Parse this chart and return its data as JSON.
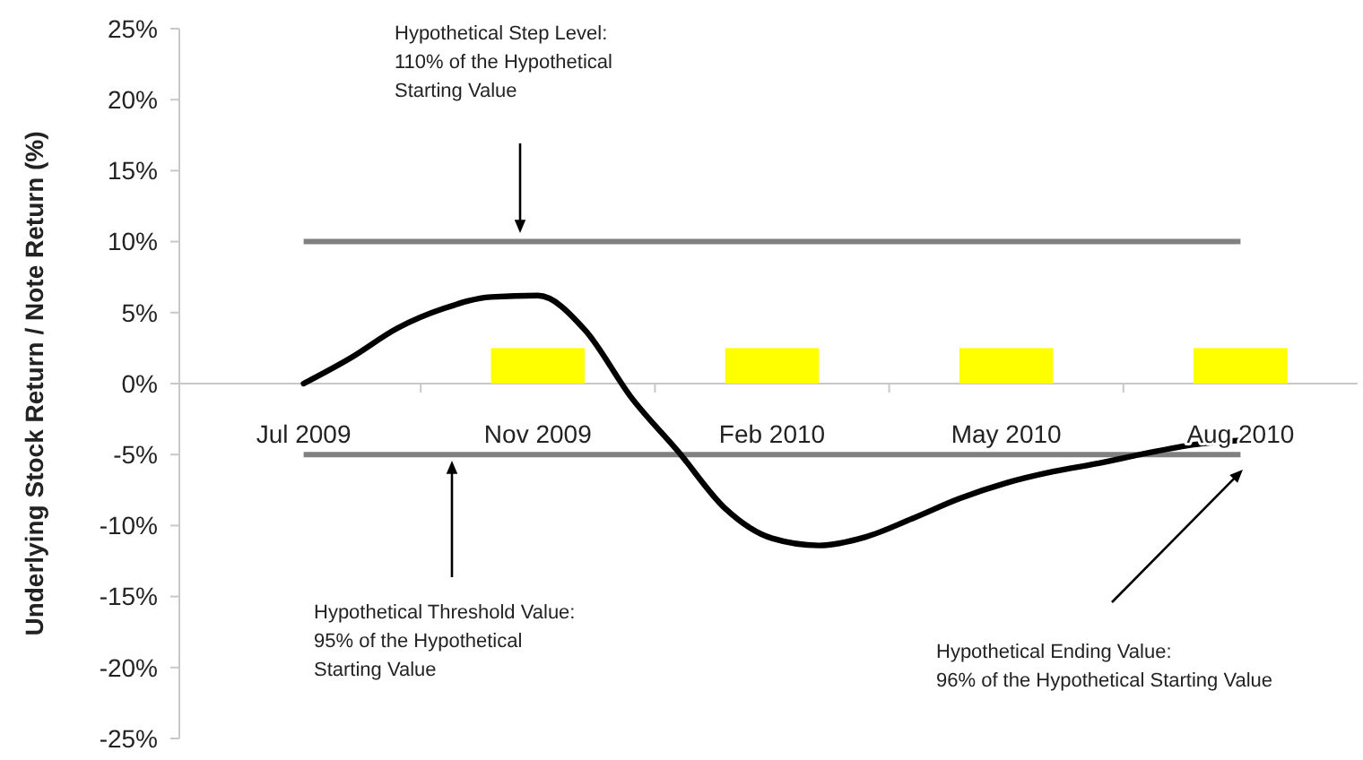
{
  "chart_data": {
    "type": "bar",
    "ylabel": "Underlying Stock Return / Note Return (%)",
    "categories": [
      "Jul 2009",
      null,
      null,
      null,
      null,
      "Nov 2009",
      null,
      null,
      null,
      null,
      "Feb 2010",
      null,
      null,
      null,
      null,
      "May 2010",
      null,
      null,
      null,
      null,
      "Aug 2010"
    ],
    "ylim": [
      -25,
      25
    ],
    "yticks": [
      {
        "value": 25,
        "label": "25%"
      },
      {
        "value": 20,
        "label": "20%"
      },
      {
        "value": 15,
        "label": "15%"
      },
      {
        "value": 10,
        "label": "10%"
      },
      {
        "value": 5,
        "label": "5%"
      },
      {
        "value": 0,
        "label": "0%"
      },
      {
        "value": -5,
        "label": "-5%"
      },
      {
        "value": -10,
        "label": "-10%"
      },
      {
        "value": -15,
        "label": "-15%"
      },
      {
        "value": -20,
        "label": "-20%"
      },
      {
        "value": -25,
        "label": "-25%"
      }
    ],
    "series": [
      {
        "color": "#ffff00",
        "values": [
          null,
          null,
          null,
          null,
          null,
          2.5,
          null,
          null,
          null,
          null,
          2.5,
          null,
          null,
          null,
          null,
          2.5,
          null,
          null,
          null,
          null,
          2.5
        ]
      },
      {
        "type": "line",
        "color": "#000000",
        "values": [
          0,
          1.8,
          3.9,
          5.3,
          6.1,
          6.2,
          3.8,
          -1,
          -4.8,
          -8.8,
          -10.9,
          -11.4,
          -10.8,
          -9.5,
          -8.1,
          -7,
          -6.2,
          -5.6,
          -4.9,
          -4.3,
          -4
        ]
      }
    ],
    "ref_lines": [
      {
        "axis": "y",
        "value": 10,
        "color": "#808080"
      },
      {
        "axis": "y",
        "value": -5,
        "color": "#808080"
      }
    ],
    "annotations": [
      "Hypothetical Step Level: 110% of the Hypothetical Starting Value",
      "Hypothetical Threshold Value: 95% of the Hypothetical Starting Value",
      "Hypothetical Ending Value: 96% of the Hypothetical Starting Value"
    ],
    "grid": false,
    "marker": "none",
    "line_style": "solid"
  }
}
